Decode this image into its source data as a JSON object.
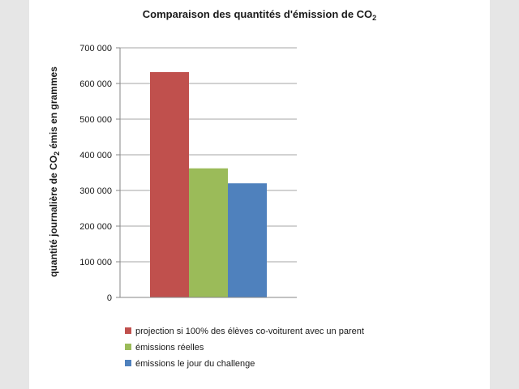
{
  "chart_data": {
    "type": "bar",
    "title": "Comparaison des quantités d'émission de CO",
    "title_subscript": "2",
    "ylabel_before": "quantité journalière de CO",
    "ylabel_subscript": "2",
    "ylabel_after": " émis en grammes",
    "xlabel": "",
    "ylim": [
      0,
      700000
    ],
    "yticks": [
      0,
      100000,
      200000,
      300000,
      400000,
      500000,
      600000,
      700000
    ],
    "ytick_labels": [
      "0",
      "100 000",
      "200 000",
      "300 000",
      "400 000",
      "500 000",
      "600 000",
      "700 000"
    ],
    "grid": true,
    "legend_position": "bottom",
    "series": [
      {
        "name": "projection si 100% des élèves co-voiturent avec un parent",
        "value": 632000,
        "color": "#c0504d"
      },
      {
        "name": "émissions réelles",
        "value": 362000,
        "color": "#9bbb59"
      },
      {
        "name": "émissions le jour du challenge",
        "value": 320000,
        "color": "#4f81bd"
      }
    ]
  }
}
